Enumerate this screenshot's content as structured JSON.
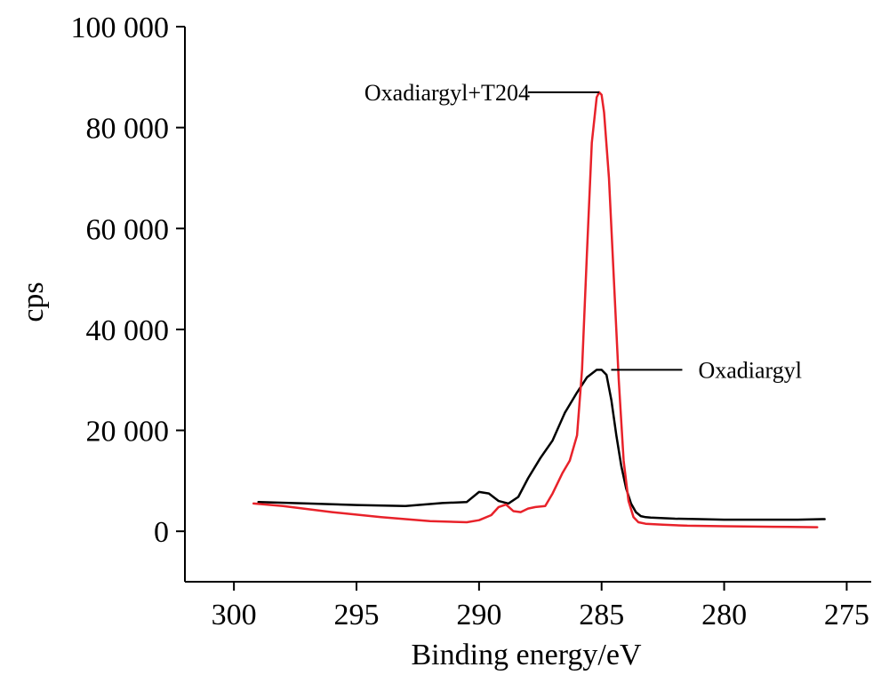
{
  "chart_data": {
    "type": "line",
    "title": "",
    "xlabel": "Binding energy/eV",
    "ylabel": "cps",
    "xlim": [
      302,
      274
    ],
    "ylim": [
      -10000,
      100000
    ],
    "x_reversed": true,
    "x_ticks": [
      300,
      295,
      290,
      285,
      280,
      275
    ],
    "x_tick_labels": [
      "300",
      "295",
      "290",
      "285",
      "280",
      "275"
    ],
    "y_ticks": [
      0,
      20000,
      40000,
      60000,
      80000,
      100000
    ],
    "y_tick_labels": [
      "0",
      "20 000",
      "40 000",
      "60 000",
      "80 000",
      "100 000"
    ],
    "grid": false,
    "series": [
      {
        "name": "Oxadiargyl",
        "color": "#000000",
        "x": [
          299,
          297,
          295,
          293,
          291.5,
          290.5,
          290,
          289.6,
          289.2,
          288.8,
          288.4,
          288,
          287.5,
          287,
          286.5,
          286,
          285.6,
          285.2,
          285,
          284.8,
          284.6,
          284.4,
          284.2,
          284,
          283.8,
          283.6,
          283.4,
          283.2,
          283,
          282.5,
          282,
          281,
          280,
          279,
          278,
          277,
          276,
          275.9
        ],
        "y": [
          5800,
          5500,
          5200,
          5000,
          5600,
          5800,
          7800,
          7500,
          6000,
          5500,
          6800,
          10500,
          14500,
          18000,
          23500,
          27500,
          30500,
          32000,
          32000,
          31000,
          26000,
          19000,
          13000,
          8500,
          5500,
          3800,
          3000,
          2800,
          2700,
          2600,
          2500,
          2400,
          2300,
          2300,
          2300,
          2300,
          2400,
          2400
        ]
      },
      {
        "name": "Oxadiargyl+T204",
        "color": "#e8222a",
        "x": [
          299.2,
          298,
          296,
          294,
          292,
          290.5,
          290,
          289.5,
          289.2,
          288.9,
          288.6,
          288.3,
          288,
          287.7,
          287.3,
          287,
          286.6,
          286.3,
          286,
          285.8,
          285.6,
          285.4,
          285.2,
          285.1,
          285,
          284.9,
          284.7,
          284.5,
          284.3,
          284.1,
          283.9,
          283.7,
          283.5,
          283.2,
          282.5,
          281.5,
          280,
          278,
          276.2
        ],
        "y": [
          5500,
          5000,
          3800,
          2800,
          2000,
          1800,
          2200,
          3200,
          4800,
          5300,
          4000,
          3800,
          4500,
          4800,
          5000,
          7500,
          11500,
          14000,
          19000,
          32000,
          55000,
          77000,
          86000,
          87000,
          86500,
          83000,
          70000,
          50000,
          30000,
          14000,
          6000,
          2800,
          1800,
          1500,
          1300,
          1100,
          1000,
          900,
          800
        ]
      }
    ],
    "annotations": [
      {
        "text": "Oxadiargyl+T204",
        "series": "Oxadiargyl+T204",
        "peak": [
          285.1,
          87000
        ]
      },
      {
        "text": "Oxadiargyl",
        "series": "Oxadiargyl",
        "peak": [
          284.9,
          32000
        ]
      }
    ]
  }
}
